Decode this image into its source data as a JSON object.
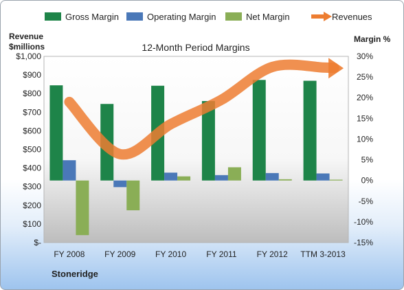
{
  "chart_data": {
    "type": "bar",
    "title": "12-Month Period Margins",
    "company": "Stoneridge",
    "categories": [
      "FY 2008",
      "FY 2009",
      "FY 2010",
      "FY 2011",
      "FY 2012",
      "TTM 3-2013"
    ],
    "ylabel_left_1": "Revenue",
    "ylabel_left_2": "$millions",
    "ylabel_right": "Margin %",
    "yticks_left": [
      "$1,000",
      "$900",
      "$800",
      "$700",
      "$600",
      "$500",
      "$400",
      "$300",
      "$200",
      "$100",
      "$-"
    ],
    "yticks_right": [
      "30%",
      "25%",
      "20%",
      "15%",
      "10%",
      "5%",
      "0%",
      "-5%",
      "-10%",
      "-15%"
    ],
    "ylim_left": [
      0,
      1000
    ],
    "ylim_right": [
      -15,
      30
    ],
    "series": [
      {
        "name": "Gross Margin",
        "axis": "right",
        "kind": "bar",
        "color": "#1e8449",
        "values": [
          23.0,
          18.5,
          22.9,
          19.2,
          24.3,
          24.1
        ]
      },
      {
        "name": "Operating Margin",
        "axis": "right",
        "kind": "bar",
        "color": "#4a78b8",
        "values": [
          4.9,
          -1.6,
          1.9,
          1.3,
          1.8,
          1.7
        ]
      },
      {
        "name": "Net Margin",
        "axis": "right",
        "kind": "bar",
        "color": "#8aae56",
        "values": [
          -13.2,
          -7.2,
          1.0,
          3.2,
          0.3,
          0.2
        ]
      },
      {
        "name": "Revenues",
        "axis": "left",
        "kind": "line",
        "color": "#ed7d31",
        "values": [
          755,
          475,
          636,
          767,
          943,
          940
        ]
      }
    ],
    "legend_position": "top",
    "grid": false
  }
}
